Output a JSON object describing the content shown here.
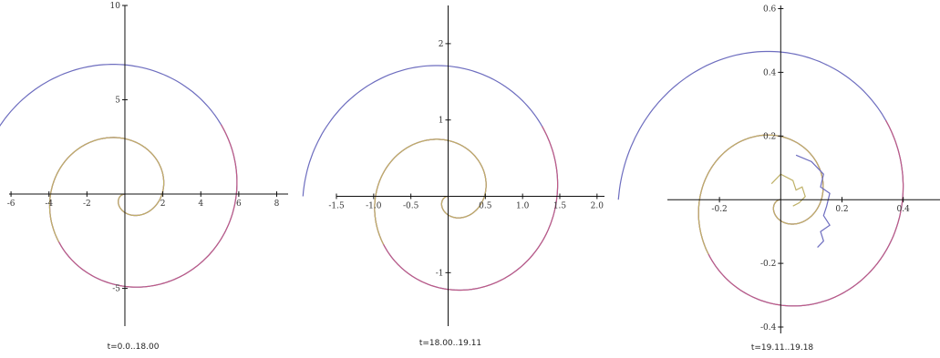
{
  "colors": {
    "blue": "#6d6dbf",
    "magenta": "#bf5b85",
    "olive": "#bfb167"
  },
  "chart_data": [
    {
      "type": "line",
      "caption": "t=0.0..18.00",
      "xlim": [
        -6.1,
        8.6
      ],
      "ylim": [
        -7.0,
        10.0
      ],
      "x_ticks": [
        -6,
        -4,
        -2,
        2,
        4,
        6,
        8
      ],
      "x_tick_labels": [
        "-6",
        "-4",
        "-2",
        "2",
        "4",
        "6",
        "8"
      ],
      "y_ticks": [
        -5,
        5,
        10
      ],
      "y_tick_labels": [
        "-5",
        "5",
        "10"
      ],
      "grid": false,
      "series": [
        {
          "color": "blue",
          "kind": "spiral",
          "scale": 7.83,
          "turns": 2.0
        },
        {
          "color": "magenta",
          "kind": "spiral",
          "scale": 7.83,
          "turns": 1.6
        },
        {
          "color": "olive",
          "kind": "spiral",
          "scale": 7.83,
          "turns": 1.1
        }
      ]
    },
    {
      "type": "line",
      "caption": "t=18.00..19.11",
      "xlim": [
        -1.5,
        2.1
      ],
      "ylim": [
        -1.7,
        2.5
      ],
      "x_ticks": [
        -1.5,
        -1.0,
        -0.5,
        0.5,
        1.0,
        1.5,
        2.0
      ],
      "x_tick_labels": [
        "-1.5",
        "-1.0",
        "-0.5",
        "0.5",
        "1.0",
        "1.5",
        "2.0"
      ],
      "y_ticks": [
        -1,
        1,
        2
      ],
      "y_tick_labels": [
        "-1",
        "1",
        "2"
      ],
      "grid": false,
      "series": [
        {
          "color": "blue",
          "kind": "spiral",
          "scale": 1.95,
          "turns": 2.0
        },
        {
          "color": "magenta",
          "kind": "spiral",
          "scale": 1.95,
          "turns": 1.6
        },
        {
          "color": "olive",
          "kind": "spiral",
          "scale": 1.95,
          "turns": 1.1
        }
      ]
    },
    {
      "type": "line",
      "caption": "t=19.11..19.18",
      "xlim": [
        -0.37,
        0.52
      ],
      "ylim": [
        -0.42,
        0.61
      ],
      "x_ticks": [
        -0.2,
        0.2,
        0.4
      ],
      "x_tick_labels": [
        "-0.2",
        "0.2",
        "0.4"
      ],
      "y_ticks": [
        -0.4,
        -0.2,
        0.2,
        0.4,
        0.6
      ],
      "y_tick_labels": [
        "-0.4",
        "-0.2",
        "0.2",
        "0.4",
        "0.6"
      ],
      "grid": false,
      "series": [
        {
          "color": "blue",
          "kind": "spiral",
          "scale": 0.53,
          "turns": 2.0
        },
        {
          "color": "magenta",
          "kind": "spiral",
          "scale": 0.53,
          "turns": 1.6
        },
        {
          "color": "olive",
          "kind": "spiral",
          "scale": 0.53,
          "turns": 1.1
        },
        {
          "color": "blue",
          "kind": "wiggle"
        },
        {
          "color": "olive",
          "kind": "wiggle"
        }
      ]
    }
  ]
}
